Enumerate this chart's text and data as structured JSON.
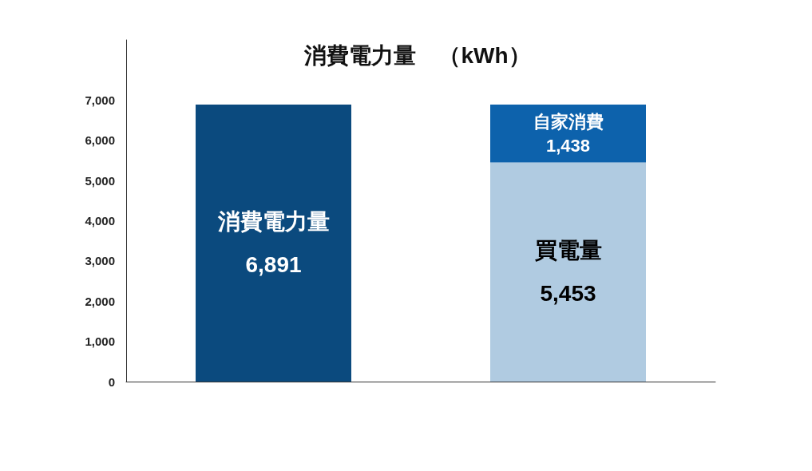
{
  "chart_data": {
    "type": "bar",
    "title": "消費電力量　（kWh）",
    "stacked": true,
    "categories": [
      null,
      null
    ],
    "series": [
      {
        "colors": [
          "#0b4a7e",
          "#b0cbe1"
        ],
        "values": [
          6891,
          5453
        ],
        "value_labels": [
          "消費電力量\n6,891",
          "買電量\n5,453"
        ]
      },
      {
        "color": "#0d62ac",
        "values": [
          null,
          1438
        ],
        "value_labels": [
          null,
          "自家消費\n1,438"
        ]
      }
    ],
    "ylim": [
      0,
      8500
    ],
    "yticks": [
      0,
      {
        "value": 1000,
        "label": "1,000"
      },
      {
        "value": 2000,
        "label": "2,000"
      },
      {
        "value": 3000,
        "label": "3,000"
      },
      {
        "value": 4000,
        "label": "4,000"
      },
      {
        "value": 5000,
        "label": "5,000"
      },
      {
        "value": 6000,
        "label": "6,000"
      },
      {
        "value": 7000,
        "label": "7,000"
      }
    ],
    "grid": false
  }
}
